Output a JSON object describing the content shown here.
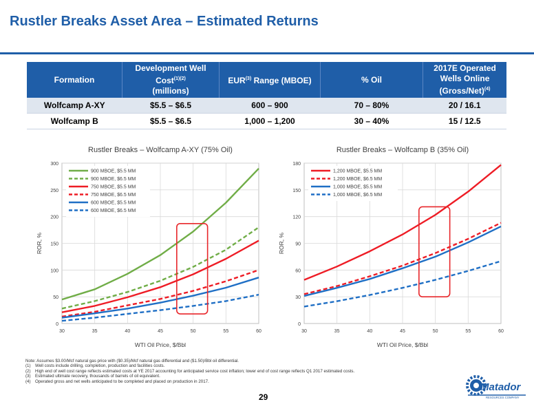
{
  "page": {
    "title": "Rustler Breaks Asset Area – Estimated Returns",
    "page_number": "29"
  },
  "table": {
    "headers": [
      {
        "text": "Formation",
        "sup": "",
        "suffix": ""
      },
      {
        "text": "Development Well Cost",
        "sup": "(1)(2)",
        "suffix": "(millions)"
      },
      {
        "text": "EUR",
        "sup": "(3)",
        "suffix": "Range (MBOE)"
      },
      {
        "text": "% Oil",
        "sup": "",
        "suffix": ""
      },
      {
        "text": "2017E Operated Wells Online (Gross/Net)",
        "sup": "(4)",
        "suffix": ""
      }
    ],
    "rows": [
      [
        "Wolfcamp A-XY",
        "$5.5 – $6.5",
        "600 – 900",
        "70 – 80%",
        "20 / 16.1"
      ],
      [
        "Wolfcamp B",
        "$5.5 – $6.5",
        "1,000 – 1,200",
        "30 – 40%",
        "15 / 12.5"
      ]
    ]
  },
  "chart_data": [
    {
      "type": "line",
      "title": "Rustler Breaks – Wolfcamp A-XY (75% Oil)",
      "xlabel": "WTI Oil Price, $/Bbl",
      "ylabel": "ROR, %",
      "xlim": [
        30,
        60
      ],
      "ylim": [
        0,
        300
      ],
      "xticks": [
        30,
        35,
        40,
        45,
        50,
        55,
        60
      ],
      "yticks": [
        0,
        50,
        100,
        150,
        200,
        250,
        300
      ],
      "grid": true,
      "legend_position": "top-left",
      "x": [
        30,
        35,
        40,
        45,
        50,
        55,
        60
      ],
      "series": [
        {
          "name": "900 MBOE, $5.5 MM",
          "color": "#70ad47",
          "dash": false,
          "values": [
            45,
            64,
            93,
            128,
            172,
            226,
            290
          ]
        },
        {
          "name": "900 MBOE, $6.5 MM",
          "color": "#70ad47",
          "dash": true,
          "values": [
            28,
            42,
            59,
            80,
            106,
            138,
            180
          ]
        },
        {
          "name": "750 MBOE, $5.5 MM",
          "color": "#ee1c25",
          "dash": false,
          "values": [
            21,
            33,
            49,
            68,
            92,
            121,
            155
          ]
        },
        {
          "name": "750 MBOE, $6.5 MM",
          "color": "#ee1c25",
          "dash": true,
          "values": [
            13,
            22,
            34,
            46,
            61,
            79,
            100
          ]
        },
        {
          "name": "600 MBOE, $5.5 MM",
          "color": "#1f6fc5",
          "dash": false,
          "values": [
            11,
            19,
            28,
            39,
            52,
            67,
            86
          ]
        },
        {
          "name": "600 MBOE, $6.5 MM",
          "color": "#1f6fc5",
          "dash": true,
          "values": [
            5,
            11,
            18,
            25,
            33,
            42,
            54
          ]
        }
      ],
      "highlight": {
        "x0": 47.5,
        "x1": 52.2,
        "y0": 18,
        "y1": 187,
        "color": "#e8262a"
      }
    },
    {
      "type": "line",
      "title": "Rustler Breaks – Wolfcamp B (35% Oil)",
      "xlabel": "WTI Oil Price, $/Bbl",
      "ylabel": "ROR, %",
      "xlim": [
        30,
        60
      ],
      "ylim": [
        0,
        180
      ],
      "xticks": [
        30,
        35,
        40,
        45,
        50,
        55,
        60
      ],
      "yticks": [
        0,
        30,
        60,
        90,
        120,
        150,
        180
      ],
      "grid": true,
      "legend_position": "top-left",
      "x": [
        30,
        35,
        40,
        45,
        50,
        55,
        60
      ],
      "series": [
        {
          "name": "1,200 MBOE, $5.5 MM",
          "color": "#ee1c25",
          "dash": false,
          "values": [
            49,
            64,
            81,
            100,
            122,
            148,
            178
          ]
        },
        {
          "name": "1,200 MBOE, $6.5 MM",
          "color": "#ee1c25",
          "dash": true,
          "values": [
            33,
            42,
            53,
            65,
            79,
            95,
            113
          ]
        },
        {
          "name": "1,000 MBOE, $5.5 MM",
          "color": "#1f6fc5",
          "dash": false,
          "values": [
            31,
            40,
            50,
            62,
            75,
            91,
            109
          ]
        },
        {
          "name": "1,000 MBOE, $6.5 MM",
          "color": "#1f6fc5",
          "dash": true,
          "values": [
            19,
            25,
            32,
            40,
            49,
            59,
            70
          ]
        }
      ],
      "highlight": {
        "x0": 47.5,
        "x1": 52.2,
        "y0": 30,
        "y1": 131,
        "color": "#e8262a"
      }
    }
  ],
  "notes": [
    {
      "marker": "",
      "text": "Note: Assumes $3.00/Mcf natural gas price with ($0.35)/Mcf natural gas differential and ($1.50)/Bbl oil differential."
    },
    {
      "marker": "(1)",
      "text": "Well costs include drilling, completion, production and facilities costs."
    },
    {
      "marker": "(2)",
      "text": "High end of well cost range reflects estimated costs at YE 2017 accounting for anticipated service cost inflation; lower end of cost range reflects Q1 2017 estimated costs."
    },
    {
      "marker": "(3)",
      "text": "Estimated ultimate recovery, thousands of barrels of oil equivalent."
    },
    {
      "marker": "(4)",
      "text": "Operated gross and net wells anticipated to be completed and placed on production in 2017."
    }
  ],
  "logo": {
    "text": "Matador",
    "tagline": "RESOURCES COMPANY",
    "color": "#1f5ea8"
  }
}
